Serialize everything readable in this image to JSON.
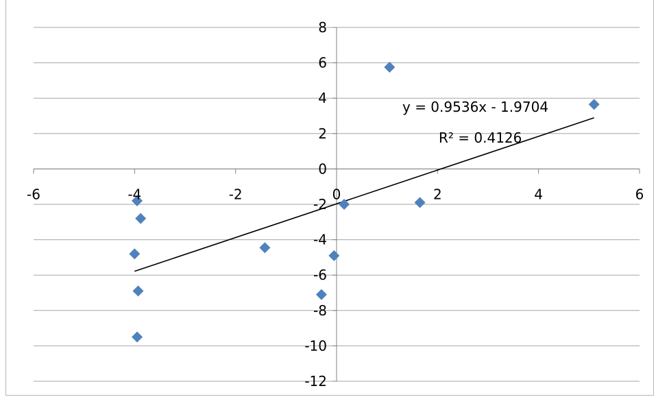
{
  "chart_data": {
    "type": "scatter",
    "xlim": [
      -6,
      6
    ],
    "ylim": [
      -12,
      8
    ],
    "x_ticks": [
      -6,
      -4,
      -2,
      0,
      2,
      4,
      6
    ],
    "y_ticks": [
      8,
      6,
      4,
      2,
      0,
      -2,
      -4,
      -6,
      -8,
      -10,
      -12
    ],
    "grid": "horizontal",
    "marker_color": "#4f81bd",
    "series": [
      {
        "points": [
          {
            "x": -3.95,
            "y": -1.8
          },
          {
            "x": -3.88,
            "y": -2.8
          },
          {
            "x": -4.0,
            "y": -4.8
          },
          {
            "x": -3.93,
            "y": -6.9
          },
          {
            "x": -3.95,
            "y": -9.5
          },
          {
            "x": -1.42,
            "y": -4.45
          },
          {
            "x": -0.05,
            "y": -4.9
          },
          {
            "x": -0.3,
            "y": -7.1
          },
          {
            "x": 0.15,
            "y": -2.0
          },
          {
            "x": 1.05,
            "y": 5.75
          },
          {
            "x": 1.65,
            "y": -1.9
          },
          {
            "x": 5.1,
            "y": 3.65
          }
        ]
      }
    ],
    "trendline": {
      "slope": 0.9536,
      "intercept": -1.9704,
      "x_range": [
        -4,
        5.1
      ],
      "equation": "y = 0.9536x - 1.9704",
      "r_squared": "R² = 0.4126"
    }
  }
}
